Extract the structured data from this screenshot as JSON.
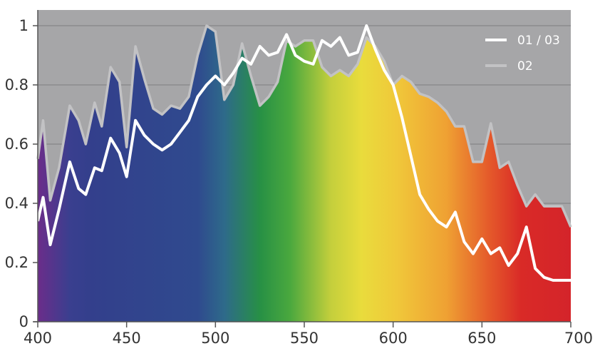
{
  "chart_data": {
    "type": "area",
    "title": "",
    "xlabel": "",
    "ylabel": "",
    "xlim": [
      400,
      700
    ],
    "ylim": [
      0,
      1
    ],
    "x_ticks": [
      400,
      450,
      500,
      550,
      600,
      650,
      700
    ],
    "y_ticks": [
      0,
      0.2,
      0.4,
      0.6,
      0.8,
      1
    ],
    "x_tick_labels": [
      "400",
      "450",
      "500",
      "550",
      "600",
      "650",
      "700"
    ],
    "y_tick_labels": [
      "0",
      "0.2",
      "0.4",
      "0.6",
      "0.8",
      "1"
    ],
    "grid": "horizontal",
    "legend_position": "top-right",
    "background_color": "#a6a6a8",
    "spectrum_stops": [
      {
        "wavelength": 400,
        "color": "#6b2d8a"
      },
      {
        "wavelength": 418,
        "color": "#3a3f8f"
      },
      {
        "wavelength": 430,
        "color": "#333f8c"
      },
      {
        "wavelength": 490,
        "color": "#2f4a8e"
      },
      {
        "wavelength": 505,
        "color": "#2e6a8a"
      },
      {
        "wavelength": 525,
        "color": "#279045"
      },
      {
        "wavelength": 542,
        "color": "#4aa83e"
      },
      {
        "wavelength": 565,
        "color": "#c4cf3c"
      },
      {
        "wavelength": 582,
        "color": "#e9dc3c"
      },
      {
        "wavelength": 602,
        "color": "#f0c83a"
      },
      {
        "wavelength": 630,
        "color": "#efa133"
      },
      {
        "wavelength": 655,
        "color": "#e4572a"
      },
      {
        "wavelength": 672,
        "color": "#d92a27"
      },
      {
        "wavelength": 700,
        "color": "#d4242a"
      }
    ],
    "series": [
      {
        "name": "01 / 03",
        "color": "#ffffff",
        "x": [
          400,
          403,
          407,
          412,
          418,
          423,
          427,
          432,
          436,
          441,
          446,
          450,
          455,
          460,
          465,
          470,
          475,
          480,
          485,
          490,
          495,
          500,
          505,
          510,
          515,
          520,
          525,
          530,
          535,
          540,
          545,
          550,
          555,
          560,
          565,
          570,
          575,
          580,
          585,
          590,
          595,
          600,
          605,
          610,
          615,
          620,
          625,
          630,
          635,
          640,
          645,
          650,
          655,
          660,
          665,
          670,
          675,
          680,
          685,
          690,
          695,
          700
        ],
        "values": [
          0.34,
          0.42,
          0.26,
          0.38,
          0.54,
          0.45,
          0.43,
          0.52,
          0.51,
          0.62,
          0.57,
          0.49,
          0.68,
          0.63,
          0.6,
          0.58,
          0.6,
          0.64,
          0.68,
          0.76,
          0.8,
          0.83,
          0.8,
          0.84,
          0.89,
          0.87,
          0.93,
          0.9,
          0.91,
          0.97,
          0.9,
          0.88,
          0.87,
          0.95,
          0.93,
          0.96,
          0.9,
          0.91,
          1.0,
          0.92,
          0.85,
          0.8,
          0.69,
          0.56,
          0.43,
          0.38,
          0.34,
          0.32,
          0.37,
          0.27,
          0.23,
          0.28,
          0.23,
          0.25,
          0.19,
          0.23,
          0.32,
          0.18,
          0.15,
          0.14,
          0.14,
          0.14
        ]
      },
      {
        "name": "02",
        "color": "#c2c2c4",
        "x": [
          400,
          403,
          407,
          412,
          418,
          423,
          427,
          432,
          436,
          441,
          446,
          450,
          455,
          460,
          465,
          470,
          475,
          480,
          485,
          490,
          495,
          500,
          505,
          510,
          515,
          520,
          525,
          530,
          535,
          540,
          545,
          550,
          555,
          560,
          565,
          570,
          575,
          580,
          585,
          590,
          595,
          600,
          605,
          610,
          615,
          620,
          625,
          630,
          635,
          640,
          645,
          650,
          655,
          660,
          665,
          670,
          675,
          680,
          685,
          690,
          695,
          700
        ],
        "values": [
          0.55,
          0.68,
          0.41,
          0.52,
          0.73,
          0.68,
          0.6,
          0.74,
          0.66,
          0.86,
          0.81,
          0.59,
          0.93,
          0.82,
          0.72,
          0.7,
          0.73,
          0.72,
          0.76,
          0.9,
          1.0,
          0.98,
          0.75,
          0.8,
          0.94,
          0.83,
          0.73,
          0.76,
          0.81,
          0.95,
          0.93,
          0.95,
          0.95,
          0.86,
          0.83,
          0.85,
          0.83,
          0.87,
          0.96,
          0.93,
          0.88,
          0.8,
          0.83,
          0.81,
          0.77,
          0.76,
          0.74,
          0.71,
          0.66,
          0.66,
          0.54,
          0.54,
          0.67,
          0.52,
          0.54,
          0.46,
          0.39,
          0.43,
          0.39,
          0.39,
          0.39,
          0.32
        ]
      }
    ]
  }
}
